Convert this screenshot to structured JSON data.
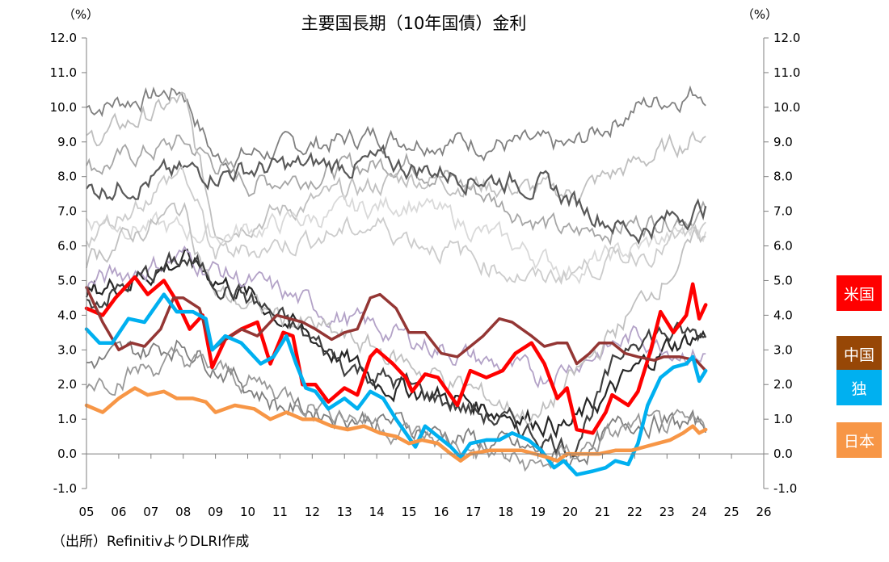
{
  "chart_data": {
    "type": "line",
    "title": "主要国長期（10年国債）金利",
    "unit_left": "（%）",
    "unit_right": "（%）",
    "y_ticks": [
      "12.0",
      "11.0",
      "10.0",
      "9.0",
      "8.0",
      "7.0",
      "6.0",
      "5.0",
      "4.0",
      "3.0",
      "2.0",
      "1.0",
      "0.0",
      "-1.0"
    ],
    "y_tick_values": [
      12,
      11,
      10,
      9,
      8,
      7,
      6,
      5,
      4,
      3,
      2,
      1,
      0,
      -1
    ],
    "ylim": [
      -1,
      12
    ],
    "x_ticks": [
      "05",
      "06",
      "07",
      "08",
      "09",
      "10",
      "11",
      "12",
      "13",
      "14",
      "15",
      "16",
      "17",
      "18",
      "19",
      "20",
      "21",
      "22",
      "23",
      "24",
      "25",
      "26"
    ],
    "xlim": [
      2005,
      2026
    ],
    "source": "（出所）RefinitivよりDLRI作成",
    "series": [
      {
        "name": "米国",
        "color": "#ff0000",
        "width": 4.5,
        "points": [
          [
            2005,
            4.2
          ],
          [
            2005.5,
            4.0
          ],
          [
            2005.9,
            4.5
          ],
          [
            2006.5,
            5.1
          ],
          [
            2006.9,
            4.6
          ],
          [
            2007.4,
            5.0
          ],
          [
            2007.8,
            4.4
          ],
          [
            2008.2,
            3.6
          ],
          [
            2008.6,
            4.0
          ],
          [
            2008.9,
            2.5
          ],
          [
            2009.3,
            3.3
          ],
          [
            2009.8,
            3.6
          ],
          [
            2010.3,
            3.8
          ],
          [
            2010.7,
            2.6
          ],
          [
            2011.1,
            3.5
          ],
          [
            2011.4,
            3.4
          ],
          [
            2011.7,
            2.0
          ],
          [
            2012.1,
            2.0
          ],
          [
            2012.5,
            1.5
          ],
          [
            2013.0,
            1.9
          ],
          [
            2013.4,
            1.7
          ],
          [
            2013.8,
            2.8
          ],
          [
            2014.0,
            3.0
          ],
          [
            2014.5,
            2.6
          ],
          [
            2014.9,
            2.2
          ],
          [
            2015.1,
            1.8
          ],
          [
            2015.5,
            2.3
          ],
          [
            2015.9,
            2.2
          ],
          [
            2016.5,
            1.4
          ],
          [
            2016.9,
            2.4
          ],
          [
            2017.4,
            2.2
          ],
          [
            2017.9,
            2.4
          ],
          [
            2018.3,
            2.9
          ],
          [
            2018.8,
            3.2
          ],
          [
            2019.2,
            2.6
          ],
          [
            2019.6,
            1.6
          ],
          [
            2019.9,
            1.9
          ],
          [
            2020.2,
            0.7
          ],
          [
            2020.7,
            0.6
          ],
          [
            2021.1,
            1.2
          ],
          [
            2021.3,
            1.7
          ],
          [
            2021.8,
            1.4
          ],
          [
            2022.1,
            1.8
          ],
          [
            2022.5,
            3.0
          ],
          [
            2022.8,
            4.1
          ],
          [
            2023.2,
            3.5
          ],
          [
            2023.6,
            4.0
          ],
          [
            2023.8,
            4.9
          ],
          [
            2024.0,
            3.9
          ],
          [
            2024.2,
            4.3
          ]
        ]
      },
      {
        "name": "中国",
        "color": "#943634",
        "width": 3.5,
        "points": [
          [
            2005,
            4.8
          ],
          [
            2005.5,
            3.8
          ],
          [
            2006.0,
            3.0
          ],
          [
            2006.4,
            3.2
          ],
          [
            2006.8,
            3.1
          ],
          [
            2007.3,
            3.6
          ],
          [
            2007.7,
            4.5
          ],
          [
            2008.0,
            4.5
          ],
          [
            2008.5,
            4.2
          ],
          [
            2008.9,
            3.0
          ],
          [
            2009.3,
            3.3
          ],
          [
            2009.8,
            3.6
          ],
          [
            2010.3,
            3.4
          ],
          [
            2010.9,
            4.0
          ],
          [
            2011.3,
            3.9
          ],
          [
            2011.7,
            3.8
          ],
          [
            2012.1,
            3.6
          ],
          [
            2012.6,
            3.3
          ],
          [
            2013.0,
            3.5
          ],
          [
            2013.4,
            3.6
          ],
          [
            2013.8,
            4.5
          ],
          [
            2014.1,
            4.6
          ],
          [
            2014.6,
            4.2
          ],
          [
            2015.0,
            3.5
          ],
          [
            2015.5,
            3.5
          ],
          [
            2016.0,
            2.9
          ],
          [
            2016.5,
            2.8
          ],
          [
            2016.9,
            3.1
          ],
          [
            2017.3,
            3.4
          ],
          [
            2017.8,
            3.9
          ],
          [
            2018.2,
            3.8
          ],
          [
            2018.8,
            3.4
          ],
          [
            2019.2,
            3.1
          ],
          [
            2019.6,
            3.2
          ],
          [
            2019.9,
            3.2
          ],
          [
            2020.2,
            2.6
          ],
          [
            2020.6,
            2.9
          ],
          [
            2020.9,
            3.2
          ],
          [
            2021.3,
            3.2
          ],
          [
            2021.7,
            2.9
          ],
          [
            2022.1,
            2.8
          ],
          [
            2022.6,
            2.7
          ],
          [
            2022.9,
            2.8
          ],
          [
            2023.4,
            2.8
          ],
          [
            2023.9,
            2.7
          ],
          [
            2024.2,
            2.4
          ]
        ]
      },
      {
        "name": "独",
        "color": "#00b0f0",
        "width": 4.5,
        "points": [
          [
            2005,
            3.6
          ],
          [
            2005.4,
            3.2
          ],
          [
            2005.8,
            3.2
          ],
          [
            2006.3,
            3.9
          ],
          [
            2006.8,
            3.8
          ],
          [
            2007.4,
            4.6
          ],
          [
            2007.8,
            4.1
          ],
          [
            2008.3,
            4.1
          ],
          [
            2008.7,
            3.9
          ],
          [
            2008.9,
            3.0
          ],
          [
            2009.3,
            3.4
          ],
          [
            2009.8,
            3.2
          ],
          [
            2010.4,
            2.6
          ],
          [
            2010.8,
            2.8
          ],
          [
            2011.2,
            3.4
          ],
          [
            2011.5,
            2.6
          ],
          [
            2011.8,
            1.9
          ],
          [
            2012.1,
            1.8
          ],
          [
            2012.5,
            1.3
          ],
          [
            2013.0,
            1.6
          ],
          [
            2013.4,
            1.3
          ],
          [
            2013.8,
            1.8
          ],
          [
            2014.2,
            1.6
          ],
          [
            2014.6,
            1.0
          ],
          [
            2014.9,
            0.6
          ],
          [
            2015.2,
            0.2
          ],
          [
            2015.5,
            0.8
          ],
          [
            2015.9,
            0.5
          ],
          [
            2016.3,
            0.2
          ],
          [
            2016.6,
            -0.1
          ],
          [
            2016.9,
            0.3
          ],
          [
            2017.4,
            0.4
          ],
          [
            2017.8,
            0.4
          ],
          [
            2018.2,
            0.6
          ],
          [
            2018.7,
            0.4
          ],
          [
            2019.1,
            0.1
          ],
          [
            2019.5,
            -0.4
          ],
          [
            2019.8,
            -0.2
          ],
          [
            2020.2,
            -0.6
          ],
          [
            2020.7,
            -0.5
          ],
          [
            2021.1,
            -0.4
          ],
          [
            2021.4,
            -0.2
          ],
          [
            2021.8,
            -0.3
          ],
          [
            2022.1,
            0.3
          ],
          [
            2022.4,
            1.4
          ],
          [
            2022.8,
            2.2
          ],
          [
            2023.2,
            2.5
          ],
          [
            2023.6,
            2.6
          ],
          [
            2023.8,
            2.8
          ],
          [
            2024.0,
            2.1
          ],
          [
            2024.2,
            2.4
          ]
        ]
      },
      {
        "name": "日本",
        "color": "#f79646",
        "width": 4.5,
        "points": [
          [
            2005,
            1.4
          ],
          [
            2005.5,
            1.2
          ],
          [
            2006.0,
            1.6
          ],
          [
            2006.5,
            1.9
          ],
          [
            2006.9,
            1.7
          ],
          [
            2007.4,
            1.8
          ],
          [
            2007.8,
            1.6
          ],
          [
            2008.3,
            1.6
          ],
          [
            2008.7,
            1.5
          ],
          [
            2009.0,
            1.2
          ],
          [
            2009.6,
            1.4
          ],
          [
            2010.2,
            1.3
          ],
          [
            2010.7,
            1.0
          ],
          [
            2011.2,
            1.2
          ],
          [
            2011.7,
            1.0
          ],
          [
            2012.1,
            1.0
          ],
          [
            2012.6,
            0.8
          ],
          [
            2013.1,
            0.7
          ],
          [
            2013.6,
            0.8
          ],
          [
            2014.1,
            0.6
          ],
          [
            2014.6,
            0.5
          ],
          [
            2015.0,
            0.3
          ],
          [
            2015.4,
            0.4
          ],
          [
            2015.9,
            0.3
          ],
          [
            2016.3,
            0.0
          ],
          [
            2016.6,
            -0.2
          ],
          [
            2016.9,
            0.0
          ],
          [
            2017.5,
            0.1
          ],
          [
            2018.0,
            0.1
          ],
          [
            2018.5,
            0.1
          ],
          [
            2018.9,
            0.0
          ],
          [
            2019.3,
            -0.1
          ],
          [
            2019.6,
            -0.2
          ],
          [
            2019.9,
            0.0
          ],
          [
            2020.4,
            0.0
          ],
          [
            2020.9,
            0.0
          ],
          [
            2021.4,
            0.1
          ],
          [
            2021.9,
            0.1
          ],
          [
            2022.3,
            0.2
          ],
          [
            2022.7,
            0.3
          ],
          [
            2023.1,
            0.4
          ],
          [
            2023.5,
            0.6
          ],
          [
            2023.8,
            0.8
          ],
          [
            2024.0,
            0.6
          ],
          [
            2024.2,
            0.7
          ]
        ]
      }
    ],
    "labels": [
      {
        "name": "米国",
        "color": "#ff0000"
      },
      {
        "name": "中国",
        "color": "#974706"
      },
      {
        "name": "独",
        "color": "#00b0f0"
      },
      {
        "name": "日本",
        "color": "#f79646"
      }
    ]
  }
}
